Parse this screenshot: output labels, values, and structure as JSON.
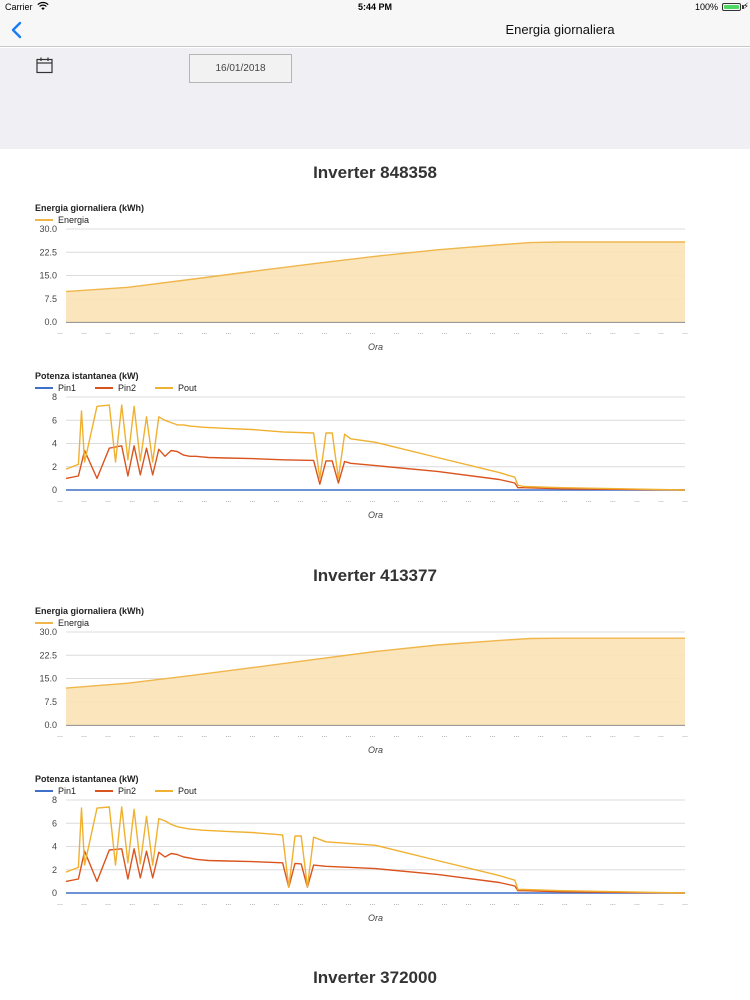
{
  "status_bar": {
    "carrier": "Carrier",
    "time": "5:44 PM",
    "battery": "100%"
  },
  "nav": {
    "title": "Energia giornaliera",
    "back_icon": "chevron-left-icon"
  },
  "filter": {
    "date": "16/01/2018",
    "calendar_icon": "calendar-icon"
  },
  "colors": {
    "energia": "#f0b64b",
    "energia_fill": "#fbe2b6",
    "pin1": "#3e6fc9",
    "pin2": "#d9541e",
    "pout": "#f0b030"
  },
  "inverters": [
    {
      "title": "Inverter 848358"
    },
    {
      "title": "Inverter 413377"
    },
    {
      "title": "Inverter 372000"
    }
  ],
  "chart_data": [
    {
      "type": "area",
      "title": "Energia giornaliera (kWh)",
      "xlabel": "Ora",
      "ylabel": "",
      "ylim": [
        0,
        30
      ],
      "y_ticks": [
        "0.0",
        "7.5",
        "15.0",
        "22.5",
        "30.0"
      ],
      "x_tick_label": "...",
      "x_tick_count": 27,
      "grid": true,
      "legend": "top-left",
      "series": [
        {
          "name": "Energia",
          "x": [
            0,
            0.1,
            0.2,
            0.3,
            0.4,
            0.5,
            0.6,
            0.7,
            0.75,
            0.8,
            0.9,
            1.0
          ],
          "values": [
            9.8,
            11.2,
            13.7,
            16.3,
            18.8,
            21.2,
            23.3,
            24.9,
            25.6,
            25.8,
            25.8,
            25.8
          ]
        }
      ]
    },
    {
      "type": "line",
      "title": "Potenza istantanea (kW)",
      "xlabel": "Ora",
      "ylabel": "",
      "ylim": [
        0,
        8
      ],
      "y_ticks": [
        "0",
        "2",
        "4",
        "6",
        "8"
      ],
      "x_tick_label": "...",
      "x_tick_count": 27,
      "grid": true,
      "legend": "top-left",
      "series": [
        {
          "name": "Pin1",
          "x": [
            0,
            1
          ],
          "values": [
            0,
            0
          ]
        },
        {
          "name": "Pin2",
          "x": [
            0,
            0.02,
            0.03,
            0.05,
            0.07,
            0.09,
            0.1,
            0.11,
            0.12,
            0.13,
            0.14,
            0.15,
            0.16,
            0.17,
            0.18,
            0.19,
            0.2,
            0.21,
            0.22,
            0.23,
            0.26,
            0.3,
            0.35,
            0.4,
            0.41,
            0.42,
            0.43,
            0.44,
            0.45,
            0.46,
            0.5,
            0.6,
            0.7,
            0.725,
            0.73,
            0.74,
            0.8,
            0.9,
            1.0
          ],
          "values": [
            1.0,
            1.2,
            3.4,
            1.0,
            3.6,
            3.8,
            1.2,
            3.8,
            1.3,
            3.6,
            1.3,
            3.5,
            2.9,
            3.4,
            3.3,
            3.0,
            2.9,
            2.9,
            2.85,
            2.8,
            2.75,
            2.7,
            2.6,
            2.55,
            0.5,
            2.5,
            2.5,
            0.6,
            2.45,
            2.3,
            2.1,
            1.6,
            0.9,
            0.6,
            0.2,
            0.2,
            0.1,
            0.05,
            0.0
          ]
        },
        {
          "name": "Pout",
          "x": [
            0,
            0.02,
            0.025,
            0.03,
            0.05,
            0.07,
            0.08,
            0.09,
            0.1,
            0.11,
            0.12,
            0.13,
            0.14,
            0.15,
            0.16,
            0.17,
            0.18,
            0.19,
            0.2,
            0.21,
            0.22,
            0.26,
            0.3,
            0.35,
            0.4,
            0.41,
            0.42,
            0.43,
            0.44,
            0.45,
            0.46,
            0.5,
            0.6,
            0.7,
            0.725,
            0.73,
            0.74,
            0.8,
            0.9,
            1.0
          ],
          "values": [
            1.8,
            2.2,
            6.8,
            2.4,
            7.2,
            7.3,
            2.4,
            7.3,
            2.6,
            7.2,
            2.5,
            6.3,
            2.4,
            6.3,
            6.0,
            5.8,
            5.6,
            5.6,
            5.5,
            5.45,
            5.4,
            5.3,
            5.2,
            5.0,
            4.9,
            1.0,
            4.9,
            4.9,
            1.0,
            4.8,
            4.4,
            4.1,
            2.8,
            1.5,
            1.1,
            0.4,
            0.3,
            0.2,
            0.1,
            0.0
          ]
        }
      ]
    },
    {
      "type": "area",
      "title": "Energia giornaliera (kWh)",
      "xlabel": "Ora",
      "ylabel": "",
      "ylim": [
        0,
        30
      ],
      "y_ticks": [
        "0.0",
        "7.5",
        "15.0",
        "22.5",
        "30.0"
      ],
      "x_tick_label": "...",
      "x_tick_count": 27,
      "grid": true,
      "legend": "top-left",
      "series": [
        {
          "name": "Energia",
          "x": [
            0,
            0.1,
            0.2,
            0.3,
            0.4,
            0.5,
            0.6,
            0.7,
            0.75,
            0.8,
            0.9,
            1.0
          ],
          "values": [
            11.9,
            13.5,
            15.9,
            18.5,
            21.1,
            23.7,
            25.8,
            27.3,
            27.9,
            28.0,
            28.0,
            28.0
          ]
        }
      ]
    },
    {
      "type": "line",
      "title": "Potenza istantanea (kW)",
      "xlabel": "Ora",
      "ylabel": "",
      "ylim": [
        0,
        8
      ],
      "y_ticks": [
        "0",
        "2",
        "4",
        "6",
        "8"
      ],
      "x_tick_label": "...",
      "x_tick_count": 27,
      "grid": true,
      "legend": "top-left",
      "series": [
        {
          "name": "Pin1",
          "x": [
            0,
            1
          ],
          "values": [
            0,
            0
          ]
        },
        {
          "name": "Pin2",
          "x": [
            0,
            0.02,
            0.03,
            0.05,
            0.07,
            0.09,
            0.1,
            0.11,
            0.12,
            0.13,
            0.14,
            0.15,
            0.16,
            0.17,
            0.18,
            0.19,
            0.2,
            0.21,
            0.22,
            0.23,
            0.26,
            0.3,
            0.35,
            0.36,
            0.37,
            0.38,
            0.39,
            0.4,
            0.42,
            0.5,
            0.6,
            0.7,
            0.725,
            0.73,
            0.74,
            0.8,
            0.9,
            1.0
          ],
          "values": [
            1.0,
            1.2,
            3.6,
            1.0,
            3.7,
            3.8,
            1.2,
            3.8,
            1.3,
            3.6,
            1.3,
            3.5,
            3.1,
            3.4,
            3.3,
            3.1,
            3.0,
            2.9,
            2.85,
            2.8,
            2.75,
            2.7,
            2.6,
            0.5,
            2.55,
            2.5,
            0.5,
            2.4,
            2.3,
            2.1,
            1.6,
            0.9,
            0.6,
            0.2,
            0.2,
            0.1,
            0.05,
            0.0
          ]
        },
        {
          "name": "Pout",
          "x": [
            0,
            0.02,
            0.025,
            0.03,
            0.05,
            0.07,
            0.08,
            0.09,
            0.1,
            0.11,
            0.12,
            0.13,
            0.14,
            0.15,
            0.16,
            0.17,
            0.18,
            0.19,
            0.2,
            0.21,
            0.22,
            0.26,
            0.3,
            0.35,
            0.36,
            0.37,
            0.38,
            0.39,
            0.4,
            0.42,
            0.5,
            0.6,
            0.7,
            0.725,
            0.73,
            0.74,
            0.8,
            0.9,
            1.0
          ],
          "values": [
            1.8,
            2.2,
            7.3,
            2.4,
            7.3,
            7.4,
            2.4,
            7.4,
            2.6,
            7.2,
            2.5,
            6.6,
            2.4,
            6.4,
            6.2,
            5.9,
            5.7,
            5.6,
            5.5,
            5.45,
            5.4,
            5.3,
            5.2,
            5.0,
            0.5,
            4.9,
            4.9,
            0.5,
            4.8,
            4.4,
            4.1,
            2.8,
            1.5,
            1.1,
            0.3,
            0.3,
            0.2,
            0.1,
            0.0
          ]
        }
      ]
    }
  ]
}
